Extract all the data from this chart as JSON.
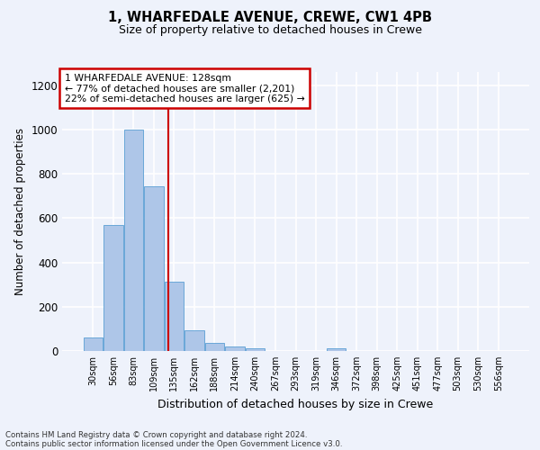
{
  "title_line1": "1, WHARFEDALE AVENUE, CREWE, CW1 4PB",
  "title_line2": "Size of property relative to detached houses in Crewe",
  "xlabel": "Distribution of detached houses by size in Crewe",
  "ylabel": "Number of detached properties",
  "bar_labels": [
    "30sqm",
    "56sqm",
    "83sqm",
    "109sqm",
    "135sqm",
    "162sqm",
    "188sqm",
    "214sqm",
    "240sqm",
    "267sqm",
    "293sqm",
    "319sqm",
    "346sqm",
    "372sqm",
    "398sqm",
    "425sqm",
    "451sqm",
    "477sqm",
    "503sqm",
    "530sqm",
    "556sqm"
  ],
  "bar_values": [
    60,
    570,
    1000,
    745,
    315,
    95,
    35,
    22,
    12,
    0,
    0,
    0,
    12,
    0,
    0,
    0,
    0,
    0,
    0,
    0,
    0
  ],
  "bar_color": "#aec6e8",
  "bar_edge_color": "#5a9fd4",
  "ylim": [
    0,
    1260
  ],
  "yticks": [
    0,
    200,
    400,
    600,
    800,
    1000,
    1200
  ],
  "annotation_text_line1": "1 WHARFEDALE AVENUE: 128sqm",
  "annotation_text_line2": "← 77% of detached houses are smaller (2,201)",
  "annotation_text_line3": "22% of semi-detached houses are larger (625) →",
  "annotation_box_color": "#ffffff",
  "annotation_box_edge": "#cc0000",
  "footer_line1": "Contains HM Land Registry data © Crown copyright and database right 2024.",
  "footer_line2": "Contains public sector information licensed under the Open Government Licence v3.0.",
  "bg_color": "#eef2fb",
  "grid_color": "#ffffff",
  "red_line_bar_index": 3.73
}
